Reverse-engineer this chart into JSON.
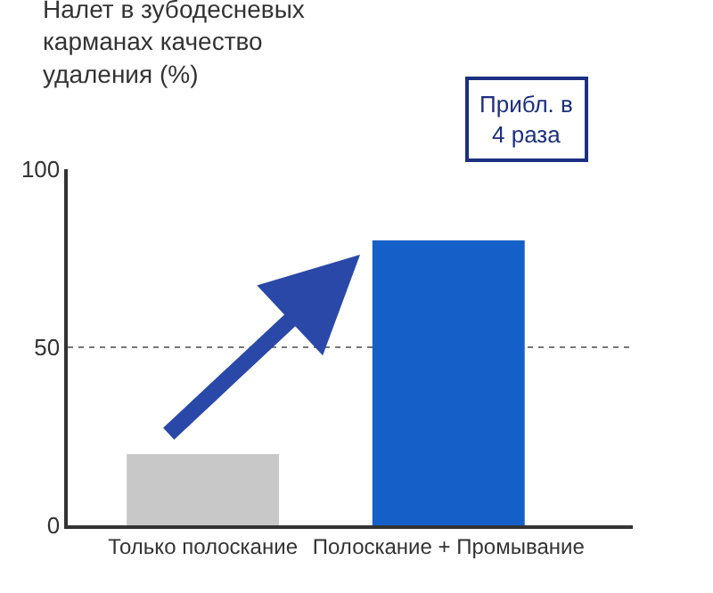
{
  "chart_data": {
    "type": "bar",
    "title": "Налет в зубодесневых\nкарманах качество\nудаления (%)",
    "categories": [
      "Только полоскание",
      "Полоскание + Промывание"
    ],
    "values": [
      20,
      80
    ],
    "colors": [
      "#c8c8c8",
      "#1560c8"
    ],
    "ylim": [
      0,
      100
    ],
    "yticks": [
      0,
      50,
      100
    ],
    "grid": "y",
    "annotations": [
      "Прибл. в\n4 раза"
    ]
  }
}
